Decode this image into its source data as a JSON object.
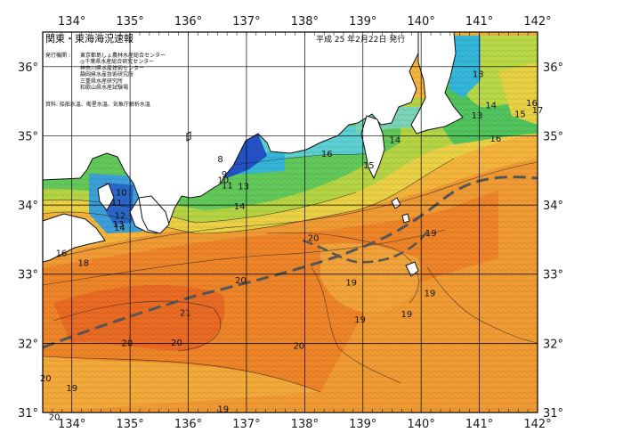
{
  "map": {
    "title": "関東・東海海況速報",
    "date": "平成 25 年2月22日 発行",
    "issuers_label": "発行機関 :",
    "issuers": [
      "東京都島しょ農林水産総合センター",
      "◎千葉県水産総合研究センター",
      "神奈川県水産技術センター",
      "静岡県水産技術研究所",
      "三重県水産研究所",
      "和歌山県水産試験場"
    ],
    "source": "資料: 船舶水温、衛星水温、気象庁解析水温",
    "lon_labels": [
      "134°",
      "135°",
      "136°",
      "137°",
      "138°",
      "139°",
      "140°",
      "141°",
      "142°"
    ],
    "lat_labels": [
      "36°",
      "35°",
      "34°",
      "33°",
      "32°",
      "31°"
    ],
    "isotherm_labels": [
      {
        "text": "13",
        "lon": 140.98,
        "lat": 35.9
      },
      {
        "text": "14",
        "lon": 141.2,
        "lat": 35.45
      },
      {
        "text": "13",
        "lon": 140.96,
        "lat": 35.3
      },
      {
        "text": "15",
        "lon": 141.7,
        "lat": 35.32
      },
      {
        "text": "16",
        "lon": 141.9,
        "lat": 35.48
      },
      {
        "text": "17",
        "lon": 142.0,
        "lat": 35.38
      },
      {
        "text": "16",
        "lon": 141.28,
        "lat": 34.97
      },
      {
        "text": "14",
        "lon": 139.55,
        "lat": 34.95
      },
      {
        "text": "16",
        "lon": 138.38,
        "lat": 34.75
      },
      {
        "text": "15",
        "lon": 139.1,
        "lat": 34.58
      },
      {
        "text": "8",
        "lon": 136.55,
        "lat": 34.67
      },
      {
        "text": "9",
        "lon": 136.62,
        "lat": 34.45
      },
      {
        "text": "10",
        "lon": 136.6,
        "lat": 34.37
      },
      {
        "text": "11",
        "lon": 136.67,
        "lat": 34.29
      },
      {
        "text": "13",
        "lon": 136.95,
        "lat": 34.28
      },
      {
        "text": "14",
        "lon": 136.88,
        "lat": 33.99
      },
      {
        "text": "10",
        "lon": 134.85,
        "lat": 34.19
      },
      {
        "text": "11",
        "lon": 134.77,
        "lat": 34.04
      },
      {
        "text": "12",
        "lon": 134.83,
        "lat": 33.85
      },
      {
        "text": "13",
        "lon": 134.8,
        "lat": 33.73
      },
      {
        "text": "14",
        "lon": 134.82,
        "lat": 33.68
      },
      {
        "text": "16",
        "lon": 133.82,
        "lat": 33.31
      },
      {
        "text": "18",
        "lon": 134.2,
        "lat": 33.17
      },
      {
        "text": "20",
        "lon": 138.15,
        "lat": 33.53
      },
      {
        "text": "19",
        "lon": 140.17,
        "lat": 33.6
      },
      {
        "text": "20",
        "lon": 136.9,
        "lat": 32.92
      },
      {
        "text": "19",
        "lon": 138.8,
        "lat": 32.89
      },
      {
        "text": "19",
        "lon": 140.15,
        "lat": 32.73
      },
      {
        "text": "19",
        "lon": 139.75,
        "lat": 32.43
      },
      {
        "text": "19",
        "lon": 138.95,
        "lat": 32.35
      },
      {
        "text": "21",
        "lon": 135.95,
        "lat": 32.45
      },
      {
        "text": "20",
        "lon": 134.95,
        "lat": 32.01
      },
      {
        "text": "20",
        "lon": 135.8,
        "lat": 32.02
      },
      {
        "text": "20",
        "lon": 137.9,
        "lat": 31.97
      },
      {
        "text": "20",
        "lon": 133.55,
        "lat": 31.5
      },
      {
        "text": "19",
        "lon": 134.0,
        "lat": 31.36
      },
      {
        "text": "19",
        "lon": 136.6,
        "lat": 31.06
      },
      {
        "text": "20",
        "lon": 133.7,
        "lat": 30.94
      }
    ],
    "colors": {
      "background": "#ffffff",
      "land": "#ffffff",
      "coast": "#111111",
      "grid": "#000000",
      "kuroshio_axis": "#555555",
      "water_cold": "#2255cc",
      "water_cyan": "#33bbdd",
      "water_green": "#55cc66",
      "water_yellow": "#e6c23a",
      "water_orange": "#ee8822",
      "water_hot": "#e65520"
    }
  }
}
